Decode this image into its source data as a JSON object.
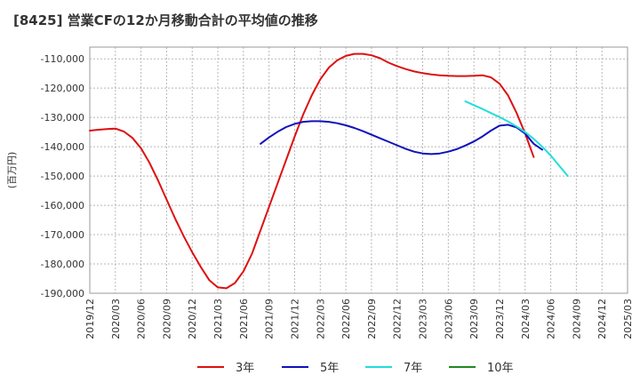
{
  "chart_data": {
    "type": "line",
    "title": "[8425]  営業CFの12か月移動合計の平均値の推移",
    "ylabel": "(百万円)",
    "xlabel": "",
    "ylim": [
      -190000,
      -106000
    ],
    "y_ticks": [
      -110000,
      -120000,
      -130000,
      -140000,
      -150000,
      -160000,
      -170000,
      -180000,
      -190000
    ],
    "y_tick_labels": [
      "-110,000",
      "-120,000",
      "-130,000",
      "-140,000",
      "-150,000",
      "-160,000",
      "-170,000",
      "-180,000",
      "-190,000"
    ],
    "x_ticks": [
      "2019/12",
      "2020/03",
      "2020/06",
      "2020/09",
      "2020/12",
      "2021/03",
      "2021/06",
      "2021/09",
      "2021/12",
      "2022/03",
      "2022/06",
      "2022/09",
      "2022/12",
      "2023/03",
      "2023/06",
      "2023/09",
      "2023/12",
      "2024/03",
      "2024/06",
      "2024/09",
      "2024/12",
      "2025/03"
    ],
    "grid": true,
    "legend_position": "bottom",
    "series": [
      {
        "name": "3年",
        "color": "#dd1111",
        "points": [
          [
            "2019/12",
            -134500
          ],
          [
            "2020/01",
            -134200
          ],
          [
            "2020/02",
            -134000
          ],
          [
            "2020/03",
            -133800
          ],
          [
            "2020/04",
            -134800
          ],
          [
            "2020/05",
            -137000
          ],
          [
            "2020/06",
            -140500
          ],
          [
            "2020/07",
            -145500
          ],
          [
            "2020/08",
            -151500
          ],
          [
            "2020/09",
            -158000
          ],
          [
            "2020/10",
            -164500
          ],
          [
            "2020/11",
            -170500
          ],
          [
            "2020/12",
            -176000
          ],
          [
            "2021/01",
            -181000
          ],
          [
            "2021/02",
            -185500
          ],
          [
            "2021/03",
            -188000
          ],
          [
            "2021/04",
            -188300
          ],
          [
            "2021/05",
            -186500
          ],
          [
            "2021/06",
            -182500
          ],
          [
            "2021/07",
            -176500
          ],
          [
            "2021/08",
            -168500
          ],
          [
            "2021/09",
            -160500
          ],
          [
            "2021/10",
            -152500
          ],
          [
            "2021/11",
            -144500
          ],
          [
            "2021/12",
            -136500
          ],
          [
            "2022/01",
            -129000
          ],
          [
            "2022/02",
            -122500
          ],
          [
            "2022/03",
            -117000
          ],
          [
            "2022/04",
            -113000
          ],
          [
            "2022/05",
            -110500
          ],
          [
            "2022/06",
            -109000
          ],
          [
            "2022/07",
            -108300
          ],
          [
            "2022/08",
            -108300
          ],
          [
            "2022/09",
            -108800
          ],
          [
            "2022/10",
            -109800
          ],
          [
            "2022/11",
            -111300
          ],
          [
            "2022/12",
            -112500
          ],
          [
            "2023/01",
            -113500
          ],
          [
            "2023/02",
            -114300
          ],
          [
            "2023/03",
            -114900
          ],
          [
            "2023/04",
            -115300
          ],
          [
            "2023/05",
            -115600
          ],
          [
            "2023/06",
            -115800
          ],
          [
            "2023/07",
            -115900
          ],
          [
            "2023/08",
            -115900
          ],
          [
            "2023/09",
            -115800
          ],
          [
            "2023/10",
            -115600
          ],
          [
            "2023/11",
            -116300
          ],
          [
            "2023/12",
            -118500
          ],
          [
            "2024/01",
            -122500
          ],
          [
            "2024/02",
            -128500
          ],
          [
            "2024/03",
            -135500
          ],
          [
            "2024/04",
            -143500
          ]
        ]
      },
      {
        "name": "5年",
        "color": "#1111bb",
        "points": [
          [
            "2021/08",
            -139000
          ],
          [
            "2021/09",
            -136800
          ],
          [
            "2021/10",
            -134900
          ],
          [
            "2021/11",
            -133300
          ],
          [
            "2021/12",
            -132200
          ],
          [
            "2022/01",
            -131500
          ],
          [
            "2022/02",
            -131300
          ],
          [
            "2022/03",
            -131300
          ],
          [
            "2022/04",
            -131500
          ],
          [
            "2022/05",
            -132000
          ],
          [
            "2022/06",
            -132700
          ],
          [
            "2022/07",
            -133600
          ],
          [
            "2022/08",
            -134700
          ],
          [
            "2022/09",
            -135900
          ],
          [
            "2022/10",
            -137100
          ],
          [
            "2022/11",
            -138300
          ],
          [
            "2022/12",
            -139500
          ],
          [
            "2023/01",
            -140700
          ],
          [
            "2023/02",
            -141700
          ],
          [
            "2023/03",
            -142300
          ],
          [
            "2023/04",
            -142500
          ],
          [
            "2023/05",
            -142300
          ],
          [
            "2023/06",
            -141700
          ],
          [
            "2023/07",
            -140800
          ],
          [
            "2023/08",
            -139600
          ],
          [
            "2023/09",
            -138200
          ],
          [
            "2023/10",
            -136500
          ],
          [
            "2023/11",
            -134500
          ],
          [
            "2023/12",
            -132800
          ],
          [
            "2024/01",
            -132500
          ],
          [
            "2024/02",
            -133400
          ],
          [
            "2024/03",
            -135500
          ],
          [
            "2024/04",
            -139000
          ],
          [
            "2024/05",
            -141000
          ]
        ]
      },
      {
        "name": "7年",
        "color": "#22dddd",
        "points": [
          [
            "2023/08",
            -124500
          ],
          [
            "2023/09",
            -125800
          ],
          [
            "2023/10",
            -127100
          ],
          [
            "2023/11",
            -128500
          ],
          [
            "2023/12",
            -129900
          ],
          [
            "2024/01",
            -131400
          ],
          [
            "2024/02",
            -133100
          ],
          [
            "2024/03",
            -135000
          ],
          [
            "2024/04",
            -137300
          ],
          [
            "2024/05",
            -140000
          ],
          [
            "2024/06",
            -143000
          ],
          [
            "2024/07",
            -146500
          ],
          [
            "2024/08",
            -150000
          ]
        ]
      },
      {
        "name": "10年",
        "color": "#228822",
        "points": []
      }
    ]
  }
}
